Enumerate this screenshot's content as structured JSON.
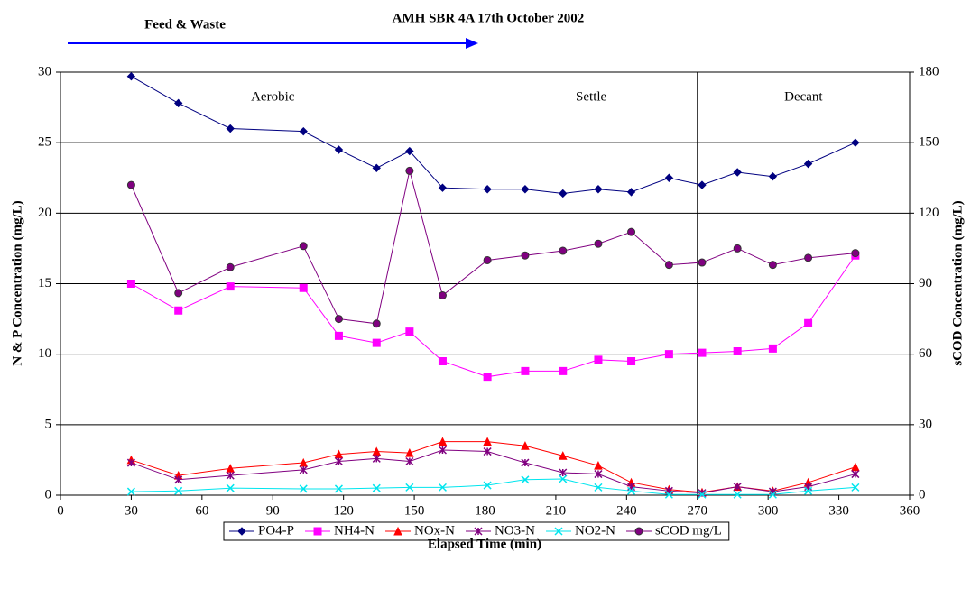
{
  "chart_data": {
    "type": "line",
    "title": "AMH SBR 4A 17th October 2002",
    "annotation": "Feed & Waste",
    "phase_labels": [
      "Aerobic",
      "Settle",
      "Decant"
    ],
    "phase_lines": [
      180,
      270
    ],
    "x_label": "Elapsed Time (min)",
    "y_label": "N & P Concentration (mg/L)",
    "y2_label": "sCOD Concentration (mg/L)",
    "x": [
      30,
      50,
      72,
      103,
      118,
      134,
      148,
      162,
      181,
      197,
      213,
      228,
      242,
      258,
      272,
      287,
      302,
      317,
      337
    ],
    "xlim": [
      0,
      360
    ],
    "xticks": [
      0,
      30,
      60,
      90,
      120,
      150,
      180,
      210,
      240,
      270,
      300,
      330,
      360
    ],
    "ylim": [
      0,
      30
    ],
    "yticks": [
      0,
      5,
      10,
      15,
      20,
      25,
      30
    ],
    "y2lim": [
      0,
      180
    ],
    "y2ticks": [
      0,
      30,
      60,
      90,
      120,
      150,
      180
    ],
    "grid": true,
    "legend": "bottom",
    "series": [
      {
        "name": "PO4-P",
        "color": "#000080",
        "marker": "diamond",
        "values": [
          29.7,
          27.8,
          26.0,
          25.8,
          24.5,
          23.2,
          24.4,
          21.8,
          21.7,
          21.7,
          21.4,
          21.7,
          21.5,
          22.5,
          22.0,
          22.9,
          22.6,
          23.5,
          25.0
        ]
      },
      {
        "name": "NH4-N",
        "color": "#ff00ff",
        "marker": "square",
        "values": [
          15.0,
          13.1,
          14.8,
          14.7,
          11.3,
          10.8,
          11.6,
          9.5,
          8.4,
          8.8,
          8.8,
          9.6,
          9.5,
          10.0,
          10.1,
          10.2,
          10.4,
          12.2,
          17.0
        ]
      },
      {
        "name": "NOx-N",
        "color": "#ff0000",
        "marker": "triangle",
        "values": [
          2.5,
          1.4,
          1.9,
          2.3,
          2.9,
          3.1,
          3.0,
          3.8,
          3.8,
          3.5,
          2.8,
          2.1,
          0.9,
          0.4,
          0.2,
          0.6,
          0.3,
          0.9,
          2.0
        ]
      },
      {
        "name": "NO3-N",
        "color": "#800080",
        "marker": "asterisk",
        "values": [
          2.3,
          1.1,
          1.4,
          1.8,
          2.4,
          2.6,
          2.4,
          3.2,
          3.1,
          2.3,
          1.6,
          1.5,
          0.6,
          0.3,
          0.15,
          0.6,
          0.25,
          0.6,
          1.5
        ]
      },
      {
        "name": "NO2-N",
        "color": "#00e5ee",
        "marker": "x",
        "values": [
          0.25,
          0.3,
          0.5,
          0.45,
          0.45,
          0.5,
          0.55,
          0.55,
          0.7,
          1.1,
          1.15,
          0.55,
          0.3,
          0.05,
          0.05,
          0.05,
          0.05,
          0.3,
          0.55
        ]
      },
      {
        "name": "sCOD mg/L",
        "color": "#800080",
        "marker": "circle",
        "axis": "y2",
        "values": [
          132,
          86,
          97,
          106,
          75,
          73,
          138,
          85,
          100,
          102,
          104,
          107,
          112,
          98,
          99,
          105,
          98,
          101,
          103
        ]
      }
    ]
  }
}
